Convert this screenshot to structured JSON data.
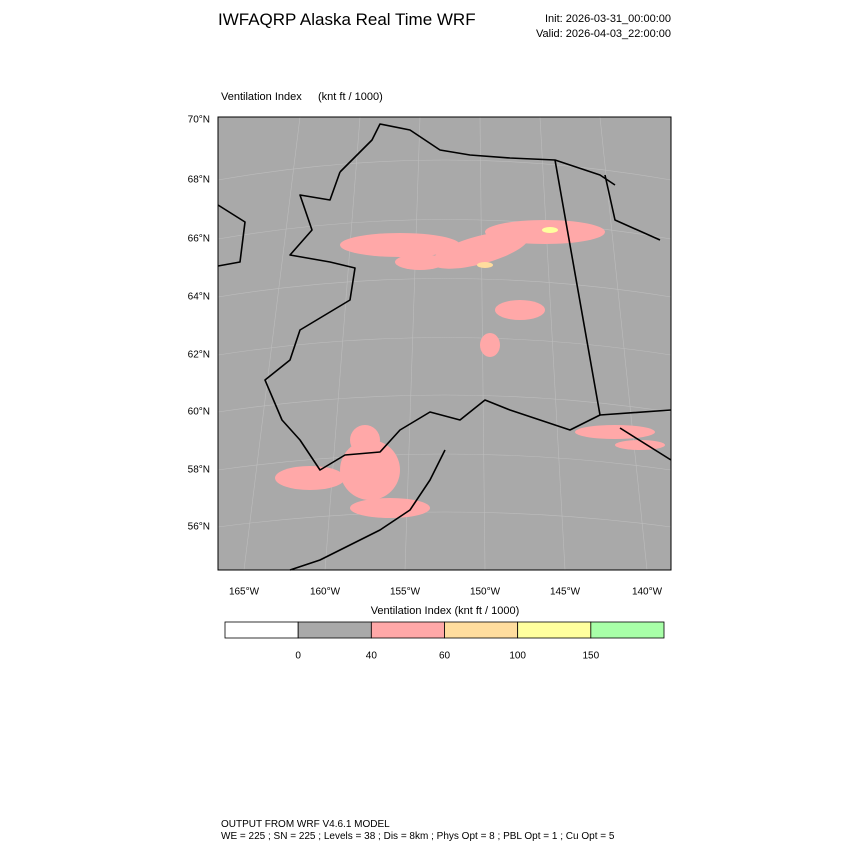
{
  "header": {
    "title": "IWFAQRP Alaska Real Time WRF",
    "init": "Init: 2026-03-31_00:00:00",
    "valid": "Valid: 2026-04-03_22:00:00"
  },
  "map": {
    "field": "Ventilation Index",
    "units": "(knt ft / 1000)",
    "lat_labels": [
      "70°N",
      "68°N",
      "66°N",
      "64°N",
      "62°N",
      "60°N",
      "58°N",
      "56°N"
    ],
    "lon_labels": [
      "165°W",
      "160°W",
      "155°W",
      "150°W",
      "145°W",
      "140°W"
    ]
  },
  "colorbar": {
    "title": "Ventilation Index  (knt ft / 1000)",
    "colors": [
      "#ffffff",
      "#a9a9a9",
      "#ffa8a8",
      "#ffdd9e",
      "#ffff9e",
      "#a8ffa8"
    ],
    "labels": [
      0,
      40,
      60,
      100,
      150
    ]
  },
  "footer": {
    "line1": "OUTPUT FROM WRF V4.6.1 MODEL",
    "line2": "WE = 225 ; SN = 225 ; Levels = 38 ; Dis = 8km ; Phys Opt = 8 ; PBL Opt = 1 ; Cu Opt = 5"
  }
}
